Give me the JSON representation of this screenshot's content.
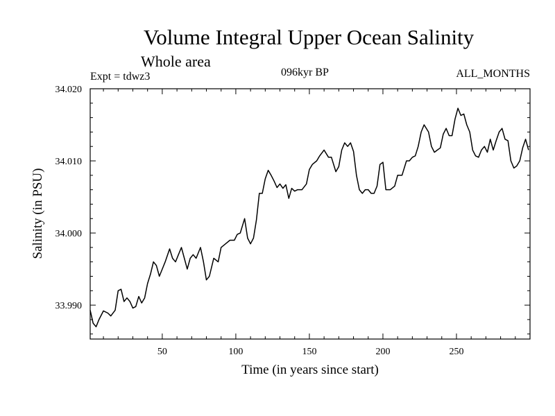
{
  "header": {
    "title": "Volume Integral Upper Ocean Salinity",
    "subtitle": "Whole area",
    "experiment": "Expt = tdwz3",
    "period": "096kyr BP",
    "months": "ALL_MONTHS"
  },
  "chart_data": {
    "type": "line",
    "title": "Volume Integral Upper Ocean Salinity",
    "subtitle": "Whole area",
    "xlabel": "Time (in years since start)",
    "ylabel": "Salinity (in PSU)",
    "xlim": [
      1,
      300
    ],
    "ylim": [
      33.9853,
      34.02
    ],
    "x_ticks": [
      50,
      100,
      150,
      200,
      250
    ],
    "y_ticks": [
      33.99,
      34.0,
      34.01,
      34.02
    ],
    "x_tick_labels": [
      "50",
      "100",
      "150",
      "200",
      "250"
    ],
    "y_tick_labels": [
      "33.990",
      "34.000",
      "34.010",
      "34.020"
    ],
    "grid": false,
    "legend": "none",
    "line_color": "#000000",
    "series": [
      {
        "x": [
          1,
          3,
          5,
          7,
          10,
          13,
          15,
          18,
          20,
          22,
          24,
          26,
          28,
          30,
          32,
          34,
          36,
          38,
          40,
          42,
          44,
          46,
          48,
          50,
          52,
          55,
          57,
          59,
          61,
          63,
          65,
          67,
          69,
          71,
          73,
          76,
          78,
          80,
          82,
          85,
          88,
          90,
          93,
          96,
          99,
          101,
          103,
          106,
          108,
          110,
          112,
          114,
          116,
          118,
          120,
          122,
          124,
          126,
          128,
          130,
          132,
          134,
          136,
          138,
          140,
          142,
          145,
          148,
          150,
          152,
          155,
          157,
          160,
          163,
          165,
          168,
          170,
          172,
          174,
          176,
          178,
          180,
          182,
          184,
          186,
          188,
          190,
          192,
          194,
          196,
          198,
          200,
          202,
          205,
          208,
          210,
          213,
          216,
          218,
          220,
          222,
          224,
          226,
          228,
          231,
          233,
          235,
          237,
          239,
          241,
          243,
          245,
          247,
          249,
          251,
          253,
          255,
          257,
          259,
          261,
          263,
          265,
          267,
          269,
          271,
          273,
          275,
          277,
          279,
          281,
          283,
          285,
          287,
          289,
          291,
          293,
          295,
          297,
          299
        ],
        "y": [
          33.9893,
          33.9875,
          33.987,
          33.988,
          33.9892,
          33.9889,
          33.9885,
          33.9893,
          33.992,
          33.9922,
          33.9905,
          33.991,
          33.9905,
          33.9896,
          33.9898,
          33.9912,
          33.9903,
          33.991,
          33.993,
          33.9943,
          33.996,
          33.9955,
          33.994,
          33.995,
          33.996,
          33.9978,
          33.9965,
          33.996,
          33.997,
          33.998,
          33.9965,
          33.995,
          33.9965,
          33.997,
          33.9965,
          33.998,
          33.996,
          33.9935,
          33.994,
          33.9965,
          33.996,
          33.998,
          33.9985,
          33.999,
          33.999,
          33.9998,
          34.0,
          34.002,
          33.9993,
          33.9985,
          33.9993,
          34.0018,
          34.0055,
          34.0055,
          34.0075,
          34.0087,
          34.008,
          34.0072,
          34.0063,
          34.0068,
          34.0062,
          34.0067,
          34.0048,
          34.0062,
          34.0058,
          34.006,
          34.006,
          34.0068,
          34.0088,
          34.0095,
          34.01,
          34.0107,
          34.0115,
          34.0105,
          34.0105,
          34.0085,
          34.0092,
          34.0115,
          34.0125,
          34.012,
          34.0125,
          34.0113,
          34.008,
          34.006,
          34.0055,
          34.006,
          34.006,
          34.0055,
          34.0055,
          34.0065,
          34.0095,
          34.0098,
          34.006,
          34.006,
          34.0065,
          34.008,
          34.008,
          34.01,
          34.01,
          34.0105,
          34.0107,
          34.012,
          34.014,
          34.015,
          34.014,
          34.012,
          34.0112,
          34.0115,
          34.0118,
          34.0137,
          34.0145,
          34.0135,
          34.0135,
          34.0158,
          34.0173,
          34.0163,
          34.0165,
          34.015,
          34.014,
          34.0115,
          34.0107,
          34.0105,
          34.0115,
          34.012,
          34.0112,
          34.013,
          34.0115,
          34.0128,
          34.014,
          34.0145,
          34.013,
          34.0128,
          34.01,
          34.009,
          34.0093,
          34.01,
          34.0118,
          34.013,
          34.0115
        ]
      }
    ]
  }
}
